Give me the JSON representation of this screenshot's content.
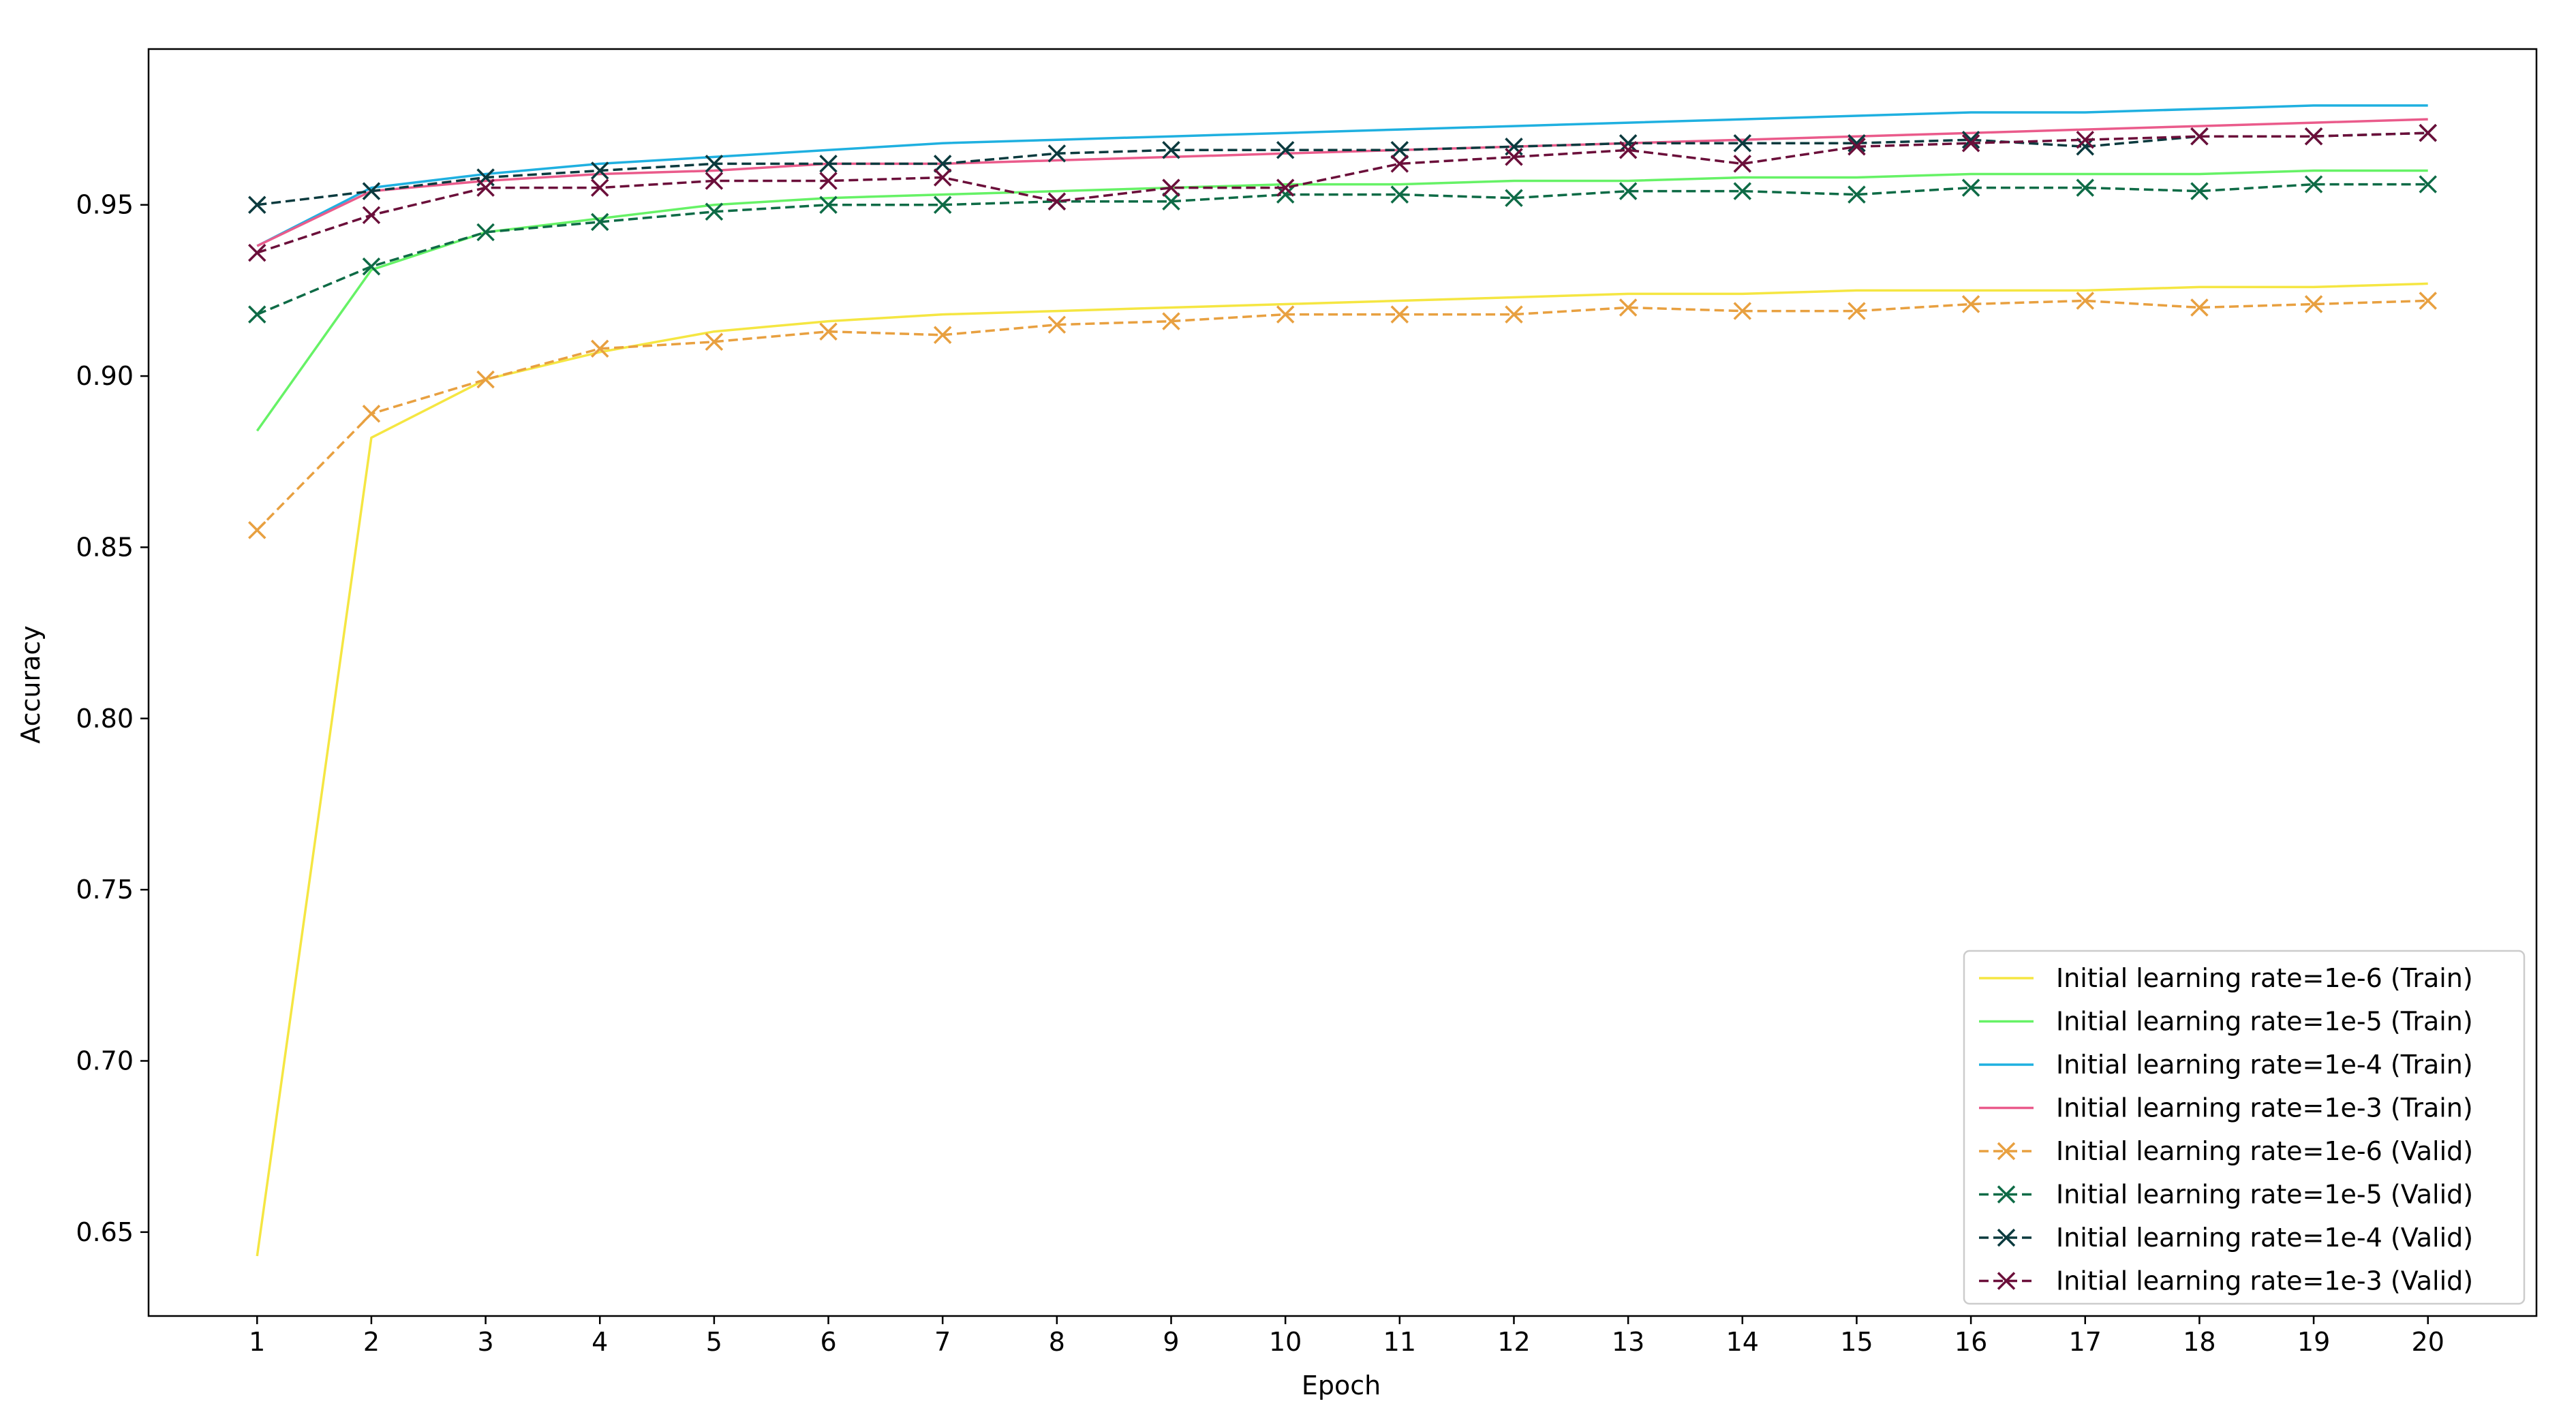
{
  "chart_data": {
    "type": "line",
    "title": "",
    "xlabel": "Epoch",
    "ylabel": "Accuracy",
    "x": [
      1,
      2,
      3,
      4,
      5,
      6,
      7,
      8,
      9,
      10,
      11,
      12,
      13,
      14,
      15,
      16,
      17,
      18,
      19,
      20
    ],
    "xlim": [
      0.05,
      20.95
    ],
    "ylim": [
      0.6255,
      0.9955
    ],
    "yticks": [
      0.65,
      0.7,
      0.75,
      0.8,
      0.85,
      0.9,
      0.95
    ],
    "ytick_labels": [
      "0.65",
      "0.70",
      "0.75",
      "0.80",
      "0.85",
      "0.90",
      "0.95"
    ],
    "xtick_labels": [
      "1",
      "2",
      "3",
      "4",
      "5",
      "6",
      "7",
      "8",
      "9",
      "10",
      "11",
      "12",
      "13",
      "14",
      "15",
      "16",
      "17",
      "18",
      "19",
      "20"
    ],
    "grid": false,
    "legend_position": "lower-right",
    "series": [
      {
        "name": "Initial learning rate=1e-6 (Train)",
        "color": "#f5e642",
        "style": "solid",
        "marker": "none",
        "values": [
          0.643,
          0.882,
          0.899,
          0.907,
          0.913,
          0.916,
          0.918,
          0.919,
          0.92,
          0.921,
          0.922,
          0.923,
          0.924,
          0.924,
          0.925,
          0.925,
          0.925,
          0.926,
          0.926,
          0.927
        ]
      },
      {
        "name": "Initial learning rate=1e-5 (Train)",
        "color": "#66f266",
        "style": "solid",
        "marker": "none",
        "values": [
          0.884,
          0.931,
          0.942,
          0.946,
          0.95,
          0.952,
          0.953,
          0.954,
          0.955,
          0.956,
          0.956,
          0.957,
          0.957,
          0.958,
          0.958,
          0.959,
          0.959,
          0.959,
          0.96,
          0.96
        ]
      },
      {
        "name": "Initial learning rate=1e-4 (Train)",
        "color": "#1fb0e0",
        "style": "solid",
        "marker": "none",
        "values": [
          0.938,
          0.955,
          0.959,
          0.962,
          0.964,
          0.966,
          0.968,
          0.969,
          0.97,
          0.971,
          0.972,
          0.973,
          0.974,
          0.975,
          0.976,
          0.977,
          0.977,
          0.978,
          0.979,
          0.979
        ]
      },
      {
        "name": "Initial learning rate=1e-3 (Train)",
        "color": "#ea5b8b",
        "style": "solid",
        "marker": "none",
        "values": [
          0.938,
          0.954,
          0.957,
          0.959,
          0.96,
          0.962,
          0.962,
          0.963,
          0.964,
          0.965,
          0.966,
          0.967,
          0.968,
          0.969,
          0.97,
          0.971,
          0.972,
          0.973,
          0.974,
          0.975
        ]
      },
      {
        "name": "Initial learning rate=1e-6 (Valid)",
        "color": "#e8a040",
        "style": "dashed",
        "marker": "x",
        "values": [
          0.855,
          0.889,
          0.899,
          0.908,
          0.91,
          0.913,
          0.912,
          0.915,
          0.916,
          0.918,
          0.918,
          0.918,
          0.92,
          0.919,
          0.919,
          0.921,
          0.922,
          0.92,
          0.921,
          0.922
        ]
      },
      {
        "name": "Initial learning rate=1e-5 (Valid)",
        "color": "#0e6b46",
        "style": "dashed",
        "marker": "x",
        "values": [
          0.918,
          0.932,
          0.942,
          0.945,
          0.948,
          0.95,
          0.95,
          0.951,
          0.951,
          0.953,
          0.953,
          0.952,
          0.954,
          0.954,
          0.953,
          0.955,
          0.955,
          0.954,
          0.956,
          0.956
        ]
      },
      {
        "name": "Initial learning rate=1e-4 (Valid)",
        "color": "#0b3a3e",
        "style": "dashed",
        "marker": "x",
        "values": [
          0.95,
          0.954,
          0.958,
          0.96,
          0.962,
          0.962,
          0.962,
          0.965,
          0.966,
          0.966,
          0.966,
          0.967,
          0.968,
          0.968,
          0.968,
          0.969,
          0.967,
          0.97,
          0.97,
          0.971
        ]
      },
      {
        "name": "Initial learning rate=1e-3 (Valid)",
        "color": "#6b0f3a",
        "style": "dashed",
        "marker": "x",
        "values": [
          0.936,
          0.947,
          0.955,
          0.955,
          0.957,
          0.957,
          0.958,
          0.951,
          0.955,
          0.955,
          0.962,
          0.964,
          0.966,
          0.962,
          0.967,
          0.968,
          0.969,
          0.97,
          0.97,
          0.971
        ]
      }
    ]
  }
}
